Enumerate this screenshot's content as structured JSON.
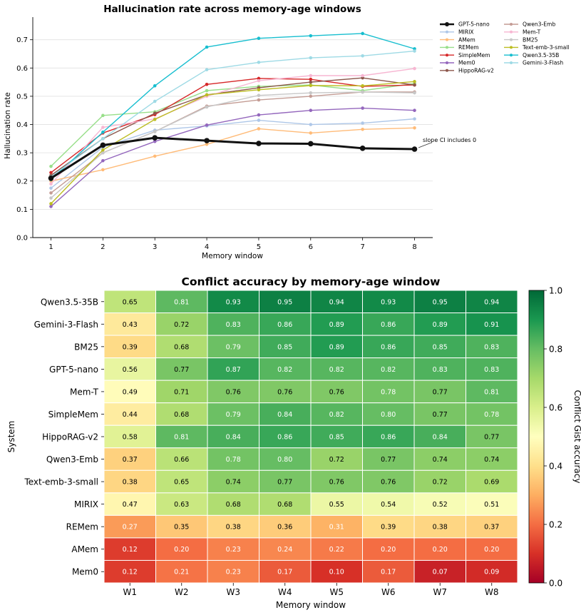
{
  "chart_data": [
    {
      "type": "line",
      "title": "Hallucination rate across memory-age windows",
      "xlabel": "Memory window",
      "ylabel": "Hallucination rate",
      "x": [
        1,
        2,
        3,
        4,
        5,
        6,
        7,
        8
      ],
      "xlim": [
        0.65,
        8.35
      ],
      "ylim": [
        0,
        0.78
      ],
      "yticks": [
        "0.0",
        "0.1",
        "0.2",
        "0.3",
        "0.4",
        "0.5",
        "0.6",
        "0.7"
      ],
      "ytick_values": [
        0,
        0.1,
        0.2,
        0.3,
        0.4,
        0.5,
        0.6,
        0.7
      ],
      "grid": "horizontal",
      "legend_position": "outside-right",
      "annotation": {
        "text": "slope CI includes 0",
        "x": 8,
        "y": 0.313
      },
      "series": [
        {
          "name": "GPT-5-nano",
          "color": "#111111",
          "bold": true,
          "values": [
            0.21,
            0.327,
            0.353,
            0.343,
            0.333,
            0.332,
            0.316,
            0.313
          ]
        },
        {
          "name": "MIRIX",
          "color": "#aec7e8",
          "values": [
            0.175,
            0.32,
            0.38,
            0.395,
            0.415,
            0.4,
            0.405,
            0.42
          ]
        },
        {
          "name": "AMem",
          "color": "#ffbb78",
          "values": [
            0.2,
            0.24,
            0.288,
            0.33,
            0.385,
            0.37,
            0.383,
            0.388
          ]
        },
        {
          "name": "REMem",
          "color": "#98df8a",
          "values": [
            0.252,
            0.432,
            0.445,
            0.52,
            0.535,
            0.54,
            0.52,
            0.545
          ]
        },
        {
          "name": "SimpleMem",
          "color": "#d62728",
          "values": [
            0.23,
            0.37,
            0.435,
            0.542,
            0.563,
            0.56,
            0.535,
            0.54
          ]
        },
        {
          "name": "Mem0",
          "color": "#9467bd",
          "values": [
            0.11,
            0.272,
            0.34,
            0.398,
            0.434,
            0.45,
            0.458,
            0.45
          ]
        },
        {
          "name": "HippoRAG-v2",
          "color": "#8c564b",
          "values": [
            0.22,
            0.35,
            0.44,
            0.505,
            0.53,
            0.55,
            0.565,
            0.54
          ]
        },
        {
          "name": "Qwen3-Emb",
          "color": "#c49c94",
          "values": [
            0.158,
            0.3,
            0.375,
            0.465,
            0.487,
            0.5,
            0.515,
            0.515
          ]
        },
        {
          "name": "Mem-T",
          "color": "#f7b6d2",
          "values": [
            0.19,
            0.39,
            0.42,
            0.5,
            0.555,
            0.573,
            0.573,
            0.598
          ]
        },
        {
          "name": "BM25",
          "color": "#c7c7c7",
          "values": [
            0.14,
            0.3,
            0.375,
            0.462,
            0.503,
            0.512,
            0.515,
            0.512
          ]
        },
        {
          "name": "Text-emb-3-small",
          "color": "#bcbd22",
          "values": [
            0.12,
            0.31,
            0.418,
            0.505,
            0.523,
            0.538,
            0.537,
            0.552
          ]
        },
        {
          "name": "Qwen3.5-35B",
          "color": "#17becf",
          "values": [
            0.205,
            0.373,
            0.537,
            0.674,
            0.705,
            0.714,
            0.722,
            0.668
          ]
        },
        {
          "name": "Gemini-3-Flash",
          "color": "#9edae5",
          "values": [
            0.215,
            0.35,
            0.482,
            0.594,
            0.62,
            0.636,
            0.643,
            0.66
          ]
        }
      ]
    },
    {
      "type": "heatmap",
      "title": "Conflict accuracy by memory-age window",
      "xlabel": "Memory window",
      "ylabel": "System",
      "colorbar_label": "Conflict Gist accuracy",
      "colorbar_ticks": [
        "0.0",
        "0.2",
        "0.4",
        "0.6",
        "0.8",
        "1.0"
      ],
      "colorbar_tick_values": [
        0,
        0.2,
        0.4,
        0.6,
        0.8,
        1.0
      ],
      "vmin": 0,
      "vmax": 1,
      "colormap": "RdYlGn",
      "columns": [
        "W1",
        "W2",
        "W3",
        "W4",
        "W5",
        "W6",
        "W7",
        "W8"
      ],
      "rows": [
        {
          "name": "Qwen3.5-35B",
          "values": [
            0.65,
            0.81,
            0.93,
            0.95,
            0.94,
            0.93,
            0.95,
            0.94
          ]
        },
        {
          "name": "Gemini-3-Flash",
          "values": [
            0.43,
            0.72,
            0.83,
            0.86,
            0.89,
            0.86,
            0.89,
            0.91
          ]
        },
        {
          "name": "BM25",
          "values": [
            0.39,
            0.68,
            0.79,
            0.85,
            0.89,
            0.86,
            0.85,
            0.83
          ]
        },
        {
          "name": "GPT-5-nano",
          "values": [
            0.56,
            0.77,
            0.87,
            0.82,
            0.82,
            0.82,
            0.83,
            0.83
          ]
        },
        {
          "name": "Mem-T",
          "values": [
            0.49,
            0.71,
            0.76,
            0.76,
            0.76,
            0.78,
            0.77,
            0.81
          ]
        },
        {
          "name": "SimpleMem",
          "values": [
            0.44,
            0.68,
            0.79,
            0.84,
            0.82,
            0.8,
            0.77,
            0.78
          ]
        },
        {
          "name": "HippoRAG-v2",
          "values": [
            0.58,
            0.81,
            0.84,
            0.86,
            0.85,
            0.86,
            0.84,
            0.77
          ]
        },
        {
          "name": "Qwen3-Emb",
          "values": [
            0.37,
            0.66,
            0.78,
            0.8,
            0.72,
            0.77,
            0.74,
            0.74
          ]
        },
        {
          "name": "Text-emb-3-small",
          "values": [
            0.38,
            0.65,
            0.74,
            0.77,
            0.76,
            0.76,
            0.72,
            0.69
          ]
        },
        {
          "name": "MIRIX",
          "values": [
            0.47,
            0.63,
            0.68,
            0.68,
            0.55,
            0.54,
            0.52,
            0.51
          ]
        },
        {
          "name": "REMem",
          "values": [
            0.27,
            0.35,
            0.38,
            0.36,
            0.31,
            0.39,
            0.38,
            0.37
          ]
        },
        {
          "name": "AMem",
          "values": [
            0.12,
            0.2,
            0.23,
            0.24,
            0.22,
            0.2,
            0.2,
            0.2
          ]
        },
        {
          "name": "Mem0",
          "values": [
            0.12,
            0.21,
            0.23,
            0.17,
            0.1,
            0.17,
            0.07,
            0.09
          ]
        }
      ]
    }
  ]
}
